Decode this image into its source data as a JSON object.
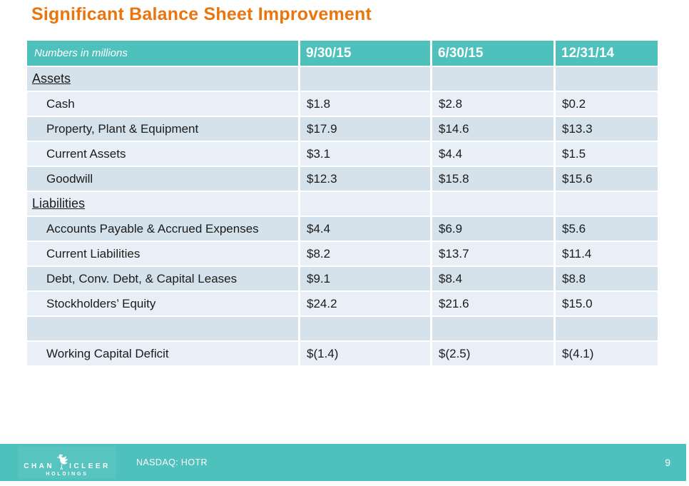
{
  "slide": {
    "title": "Significant Balance Sheet Improvement",
    "page_number": "9",
    "colors": {
      "accent_teal": "#4EC1BD",
      "band_dark": "#D5E2EB",
      "band_light": "#E9EFF6",
      "title_orange": "#E9750F",
      "text_dark": "#1B1B1B"
    }
  },
  "table": {
    "header": {
      "label": "Numbers in millions",
      "columns": [
        "9/30/15",
        "6/30/15",
        "12/31/14"
      ]
    },
    "rows": [
      {
        "type": "section",
        "label": "Assets",
        "values": [
          "",
          "",
          ""
        ]
      },
      {
        "type": "item",
        "label": "Cash",
        "values": [
          "$1.8",
          "$2.8",
          "$0.2"
        ]
      },
      {
        "type": "item",
        "label": "Property, Plant & Equipment",
        "values": [
          "$17.9",
          "$14.6",
          "$13.3"
        ]
      },
      {
        "type": "item",
        "label": "Current Assets",
        "values": [
          "$3.1",
          "$4.4",
          "$1.5"
        ]
      },
      {
        "type": "item",
        "label": "Goodwill",
        "values": [
          "$12.3",
          "$15.8",
          "$15.6"
        ]
      },
      {
        "type": "section",
        "label": "Liabilities",
        "values": [
          "",
          "",
          ""
        ]
      },
      {
        "type": "item",
        "label": "Accounts Payable & Accrued Expenses",
        "values": [
          "$4.4",
          "$6.9",
          "$5.6"
        ]
      },
      {
        "type": "item",
        "label": "Current Liabilities",
        "values": [
          "$8.2",
          "$13.7",
          "$11.4"
        ]
      },
      {
        "type": "item",
        "label": "Debt, Conv. Debt,  & Capital Leases",
        "values": [
          "$9.1",
          "$8.4",
          "$8.8"
        ]
      },
      {
        "type": "item",
        "label": "Stockholders’ Equity",
        "values": [
          "$24.2",
          "$21.6",
          "$15.0"
        ]
      },
      {
        "type": "spacer",
        "label": "",
        "values": [
          "",
          "",
          ""
        ]
      },
      {
        "type": "item",
        "label": "Working Capital Deficit",
        "values": [
          "$(1.4)",
          "$(2.5)",
          "$(4.1)"
        ]
      }
    ]
  },
  "footer": {
    "logo": {
      "text_left": "CHAN",
      "text_right": "ICLEER",
      "subtext": "HOLDINGS"
    },
    "ticker": "NASDAQ: HOTR"
  }
}
